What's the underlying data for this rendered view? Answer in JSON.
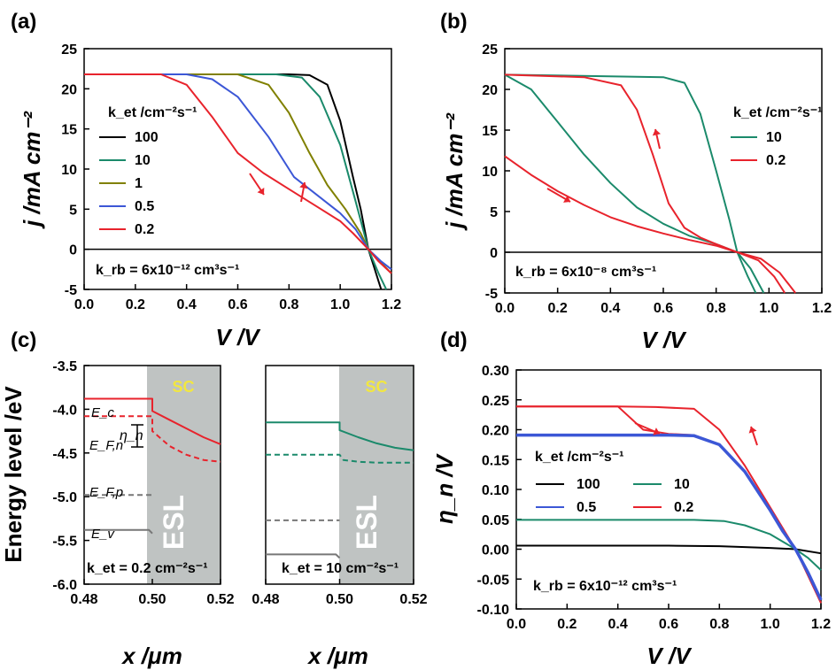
{
  "chart_data": [
    {
      "panel": "(a)",
      "type": "line",
      "xlabel": "V /V",
      "ylabel": "j /mA cm⁻²",
      "xlim": [
        0,
        1.2
      ],
      "ylim": [
        -5,
        25
      ],
      "xticks": [
        "0.0",
        "0.2",
        "0.4",
        "0.6",
        "0.8",
        "1.0",
        "1.2"
      ],
      "yticks": [
        "-5",
        "0",
        "5",
        "10",
        "15",
        "20",
        "25"
      ],
      "legend_title": "k_et /cm⁻²s⁻¹",
      "legend_position": "left",
      "annotation": "k_rb = 6x10⁻¹² cm³s⁻¹",
      "series": [
        {
          "name": "100",
          "color": "#000000",
          "x": [
            0,
            0.8,
            0.88,
            0.95,
            1.0,
            1.05,
            1.08,
            1.11,
            1.13,
            1.15,
            1.16
          ],
          "y": [
            21.8,
            21.8,
            21.7,
            20.5,
            16,
            9,
            5,
            0,
            -2,
            -4,
            -5
          ]
        },
        {
          "name": "10",
          "color": "#1b8a6b",
          "x": [
            0,
            0.75,
            0.85,
            0.92,
            1.0,
            1.06,
            1.11,
            1.15,
            1.18
          ],
          "y": [
            21.8,
            21.8,
            21.4,
            19,
            13,
            6,
            0,
            -3,
            -5
          ]
        },
        {
          "name": "1",
          "color": "#808000",
          "x": [
            0,
            0.6,
            0.72,
            0.8,
            0.88,
            0.95,
            1.02,
            1.08,
            1.11,
            1.17,
            1.2
          ],
          "y": [
            21.8,
            21.8,
            20.5,
            17,
            12,
            8,
            5,
            2,
            0,
            -2,
            -3
          ]
        },
        {
          "name": "0.5",
          "color": "#3c57d6",
          "x": [
            0,
            0.4,
            0.5,
            0.6,
            0.72,
            0.82,
            0.92,
            1.0,
            1.06,
            1.11,
            1.16,
            1.2
          ],
          "y": [
            21.8,
            21.8,
            21.2,
            19,
            14,
            9,
            6.5,
            4.5,
            2.5,
            0,
            -1.5,
            -2.5
          ]
        },
        {
          "name": "0.2",
          "color": "#e8232c",
          "x": [
            0,
            0.3,
            0.4,
            0.5,
            0.6,
            0.7,
            0.8,
            0.9,
            1.0,
            1.05,
            1.11,
            1.15,
            1.2
          ],
          "y": [
            21.8,
            21.8,
            20.5,
            16.5,
            12,
            9.5,
            7.5,
            5.5,
            3.5,
            2,
            0,
            -1.5,
            -3
          ]
        }
      ],
      "arrows": [
        "down-right",
        "up"
      ]
    },
    {
      "panel": "(b)",
      "type": "line",
      "xlabel": "V /V",
      "ylabel": "j /mA cm⁻²",
      "xlim": [
        0,
        1.2
      ],
      "ylim": [
        -5,
        25
      ],
      "xticks": [
        "0.0",
        "0.2",
        "0.4",
        "0.6",
        "0.8",
        "1.0",
        "1.2"
      ],
      "yticks": [
        "-5",
        "0",
        "5",
        "10",
        "15",
        "20",
        "25"
      ],
      "legend_title": "k_et /cm⁻²s⁻¹",
      "legend_position": "right",
      "annotation": "k_rb = 6x10⁻⁸ cm³s⁻¹",
      "series": [
        {
          "name": "10",
          "color": "#1b8a6b",
          "x": [
            0,
            0.6,
            0.68,
            0.74,
            0.8,
            0.85,
            0.88,
            0.92,
            0.95
          ],
          "y": [
            21.8,
            21.5,
            20.8,
            17,
            10,
            4,
            0,
            -3,
            -5
          ]
        },
        {
          "name": "10",
          "color": "#1b8a6b",
          "x": [
            0,
            0.1,
            0.2,
            0.3,
            0.4,
            0.5,
            0.6,
            0.7,
            0.8,
            0.88,
            0.93,
            0.98
          ],
          "y": [
            21.8,
            20,
            16,
            12,
            8.5,
            5.5,
            3.5,
            2,
            1,
            0,
            -2,
            -5
          ]
        },
        {
          "name": "0.2",
          "color": "#e8232c",
          "x": [
            0,
            0.3,
            0.44,
            0.5,
            0.56,
            0.62,
            0.68,
            0.74,
            0.8,
            0.88,
            0.96,
            1.02,
            1.06
          ],
          "y": [
            21.8,
            21.5,
            20.5,
            17.5,
            12,
            6,
            3,
            1.8,
            1,
            0,
            -1,
            -3,
            -5
          ]
        },
        {
          "name": "0.2",
          "color": "#e8232c",
          "x": [
            0,
            0.1,
            0.2,
            0.3,
            0.4,
            0.5,
            0.6,
            0.7,
            0.8,
            0.88,
            0.97,
            1.04,
            1.1
          ],
          "y": [
            11.8,
            9.5,
            7.5,
            5.8,
            4.3,
            3.2,
            2.3,
            1.5,
            0.8,
            0,
            -0.8,
            -2.5,
            -5
          ]
        }
      ],
      "arrows": [
        "down-right",
        "up"
      ]
    },
    {
      "panel": "(c)",
      "type": "line",
      "xlabel": "x /μm",
      "ylabel": "Energy level /eV",
      "xlim": [
        0.48,
        0.52
      ],
      "ylim": [
        -6.0,
        -3.5
      ],
      "xticks": [
        "0.48",
        "0.50",
        "0.52"
      ],
      "yticks": [
        "-3.5",
        "-4.0",
        "-4.5",
        "-5.0",
        "-5.5",
        "-6.0"
      ],
      "shaded_region_label": [
        "SC",
        "ESL"
      ],
      "sub_panels": [
        {
          "annotation": "k_et = 0.2 cm⁻²s⁻¹",
          "labels": [
            "E_c",
            "E_F,n",
            "η_n",
            "E_F,p",
            "E_v"
          ],
          "series": [
            {
              "name": "E_c",
              "color": "#e8232c",
              "style": "solid",
              "x": [
                0.48,
                0.5,
                0.5,
                0.505,
                0.51,
                0.515,
                0.52
              ],
              "y": [
                -3.88,
                -3.88,
                -4.02,
                -4.12,
                -4.22,
                -4.32,
                -4.4
              ]
            },
            {
              "name": "E_F,n",
              "color": "#e8232c",
              "style": "dashed",
              "x": [
                0.48,
                0.5,
                0.5,
                0.505,
                0.51,
                0.515,
                0.52
              ],
              "y": [
                -4.08,
                -4.08,
                -4.25,
                -4.42,
                -4.52,
                -4.58,
                -4.6
              ]
            },
            {
              "name": "E_F,p",
              "color": "#777777",
              "style": "dashed",
              "x": [
                0.48,
                0.5
              ],
              "y": [
                -4.98,
                -4.98
              ]
            },
            {
              "name": "E_v",
              "color": "#777777",
              "style": "solid",
              "x": [
                0.48,
                0.499,
                0.5
              ],
              "y": [
                -5.38,
                -5.38,
                -5.42
              ]
            }
          ]
        },
        {
          "annotation": "k_et = 10 cm⁻²s⁻¹",
          "series": [
            {
              "name": "E_c",
              "color": "#1b8a6b",
              "style": "solid",
              "x": [
                0.48,
                0.5,
                0.5,
                0.505,
                0.51,
                0.515,
                0.52
              ],
              "y": [
                -4.15,
                -4.15,
                -4.24,
                -4.32,
                -4.39,
                -4.44,
                -4.47
              ]
            },
            {
              "name": "E_F,n",
              "color": "#1b8a6b",
              "style": "dashed",
              "x": [
                0.48,
                0.5,
                0.501,
                0.505,
                0.51,
                0.52
              ],
              "y": [
                -4.52,
                -4.52,
                -4.58,
                -4.6,
                -4.61,
                -4.61
              ]
            },
            {
              "name": "E_F,p",
              "color": "#777777",
              "style": "dashed",
              "x": [
                0.48,
                0.5
              ],
              "y": [
                -5.27,
                -5.27
              ]
            },
            {
              "name": "E_v",
              "color": "#777777",
              "style": "solid",
              "x": [
                0.48,
                0.499,
                0.5
              ],
              "y": [
                -5.66,
                -5.66,
                -5.7
              ]
            }
          ]
        }
      ]
    },
    {
      "panel": "(d)",
      "type": "line",
      "xlabel": "V /V",
      "ylabel": "η_n /V",
      "xlim": [
        0,
        1.2
      ],
      "ylim": [
        -0.1,
        0.3
      ],
      "xticks": [
        "0.0",
        "0.2",
        "0.4",
        "0.6",
        "0.8",
        "1.0",
        "1.2"
      ],
      "yticks": [
        "-0.10",
        "-0.05",
        "0.00",
        "0.05",
        "0.10",
        "0.15",
        "0.20",
        "0.25",
        "0.30"
      ],
      "legend_title": "k_et /cm⁻²s⁻¹",
      "legend_position": "center",
      "annotation": "k_rb = 6x10⁻¹² cm³s⁻¹",
      "series": [
        {
          "name": "100",
          "color": "#000000",
          "x": [
            0,
            0.6,
            0.8,
            1.0,
            1.1,
            1.2
          ],
          "y": [
            0.006,
            0.006,
            0.005,
            0.002,
            0,
            -0.007
          ]
        },
        {
          "name": "10",
          "color": "#1b8a6b",
          "x": [
            0,
            0.7,
            0.82,
            0.9,
            1.0,
            1.1,
            1.15,
            1.2
          ],
          "y": [
            0.049,
            0.049,
            0.047,
            0.04,
            0.025,
            0,
            -0.015,
            -0.035
          ]
        },
        {
          "name": "0.5",
          "color": "#3c57d6",
          "x": [
            0,
            0.6,
            0.7,
            0.8,
            0.9,
            1.0,
            1.05,
            1.1,
            1.15,
            1.2
          ],
          "y": [
            0.191,
            0.191,
            0.19,
            0.175,
            0.13,
            0.065,
            0.03,
            0,
            -0.04,
            -0.085
          ]
        },
        {
          "name": "0.2",
          "color": "#e8232c",
          "x": [
            0,
            0.4,
            0.55,
            0.7,
            0.8,
            0.9,
            1.0,
            1.05,
            1.1,
            1.15,
            1.2
          ],
          "y": [
            0.239,
            0.239,
            0.238,
            0.235,
            0.2,
            0.14,
            0.07,
            0.035,
            0,
            -0.045,
            -0.09
          ]
        },
        {
          "name": "0.2",
          "color": "#e8232c",
          "x": [
            0,
            0.4,
            0.5,
            0.6,
            0.7,
            0.8,
            0.9,
            1.0,
            1.1
          ],
          "y": [
            0.239,
            0.239,
            0.2,
            0.193,
            0.191,
            0.175,
            0.13,
            0.065,
            0
          ]
        }
      ],
      "arrows": [
        "right",
        "up"
      ]
    }
  ]
}
